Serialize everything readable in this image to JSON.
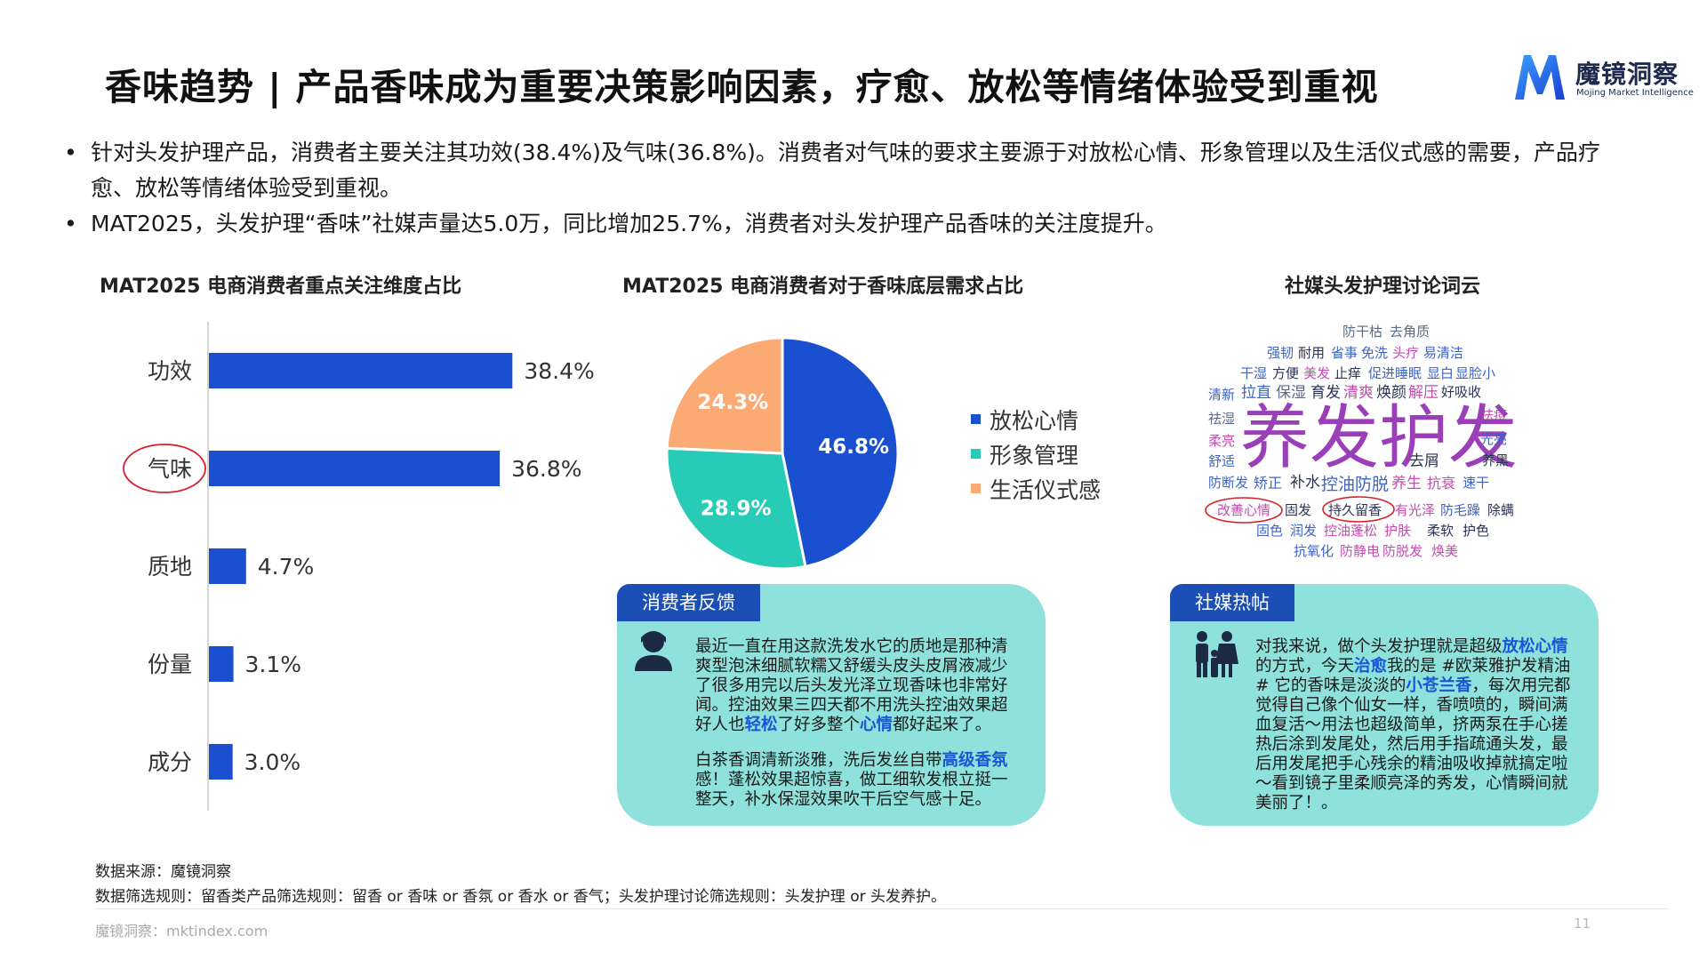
{
  "header": {
    "title": "香味趋势 | 产品香味成为重要决策影响因素，疗愈、放松等情绪体验受到重视",
    "logo_name": "魔镜洞察",
    "logo_sub": "Mojing Market Intelligence"
  },
  "bullets": [
    "针对头发护理产品，消费者主要关注其功效(38.4%)及气味(36.8%)。消费者对气味的要求主要源于对放松心情、形象管理以及生活仪式感的需要，产品疗愈、放松等情绪体验受到重视。",
    "MAT2025，头发护理“香味”社媒声量达5.0万，同比增加25.7%，消费者对头发护理产品香味的关注度提升。"
  ],
  "chart_data": [
    {
      "type": "bar",
      "orientation": "horizontal",
      "title": "MAT2025 电商消费者重点关注维度占比",
      "categories": [
        "功效",
        "气味",
        "质地",
        "份量",
        "成分"
      ],
      "values": [
        38.4,
        36.8,
        4.7,
        3.1,
        3.0
      ],
      "value_labels": [
        "38.4%",
        "36.8%",
        "4.7%",
        "3.1%",
        "3.0%"
      ],
      "highlighted_category": "气味",
      "color": "#1a50d0",
      "xlim": [
        0,
        45
      ],
      "grid": false
    },
    {
      "type": "pie",
      "title": "MAT2025 电商消费者对于香味底层需求占比",
      "categories": [
        "放松心情",
        "形象管理",
        "生活仪式感"
      ],
      "values": [
        46.8,
        28.9,
        24.3
      ],
      "value_labels": [
        "46.8%",
        "28.9%",
        "24.3%"
      ],
      "colors": [
        "#1a50d0",
        "#27cbb6",
        "#fbaa73"
      ],
      "legend_position": "right"
    }
  ],
  "wordcloud": {
    "title": "社媒头发护理讨论词云",
    "words": [
      "防干枯",
      "去角质",
      "强韧",
      "耐用",
      "省事",
      "免洗",
      "头疗",
      "易清洁",
      "干湿",
      "方便",
      "美发",
      "止痒",
      "促进睡眠",
      "显白",
      "显脸小",
      "清新",
      "拉直",
      "保湿",
      "育发",
      "清爽",
      "焕颜",
      "解压",
      "好吸收",
      "祛湿",
      "祛痘",
      "柔亮",
      "养发护发",
      "光亮",
      "舒适",
      "去屑",
      "养黑",
      "防断发",
      "矫正",
      "补水",
      "控油",
      "防脱",
      "养生",
      "抗衰",
      "速干",
      "改善心情",
      "固发",
      "持久留香",
      "有光泽",
      "防毛躁",
      "除螨",
      "固色",
      "润发",
      "控油蓬松",
      "护肤",
      "柔软",
      "护色",
      "抗氧化",
      "防静电",
      "防脱发",
      "焕美"
    ],
    "circled": [
      "改善心情",
      "持久留香"
    ]
  },
  "cards": [
    {
      "tag": "消费者反馈",
      "paragraphs": [
        [
          "最近一直在用这款洗发水它的质地是那种清爽型泡沫细腻软糯又舒缓头皮头皮屑液减少了很多用完以后头发光泽立现香味也非常好闻。控油效果三四天都不用洗头控油效果超好人也",
          "轻松",
          "了好多整个",
          "心情",
          "都好起来了。"
        ],
        [
          "白茶香调清新淡雅，洗后发丝自带",
          "高级香氛",
          "感！蓬松效果超惊喜，做工细软发根立挺一整天，补水保湿效果吹干后空气感十足。"
        ]
      ]
    },
    {
      "tag": "社媒热帖",
      "paragraphs": [
        [
          "对我来说，做个头发护理就是超级",
          "放松心情",
          "的方式，今天",
          "治愈",
          "我的是 #欧莱雅护发精油 # 它的香味是淡淡的",
          "小苍兰香",
          "，每次用完都觉得自己像个仙女一样，香喷喷的，瞬间满血复活～用法也超级简单，挤两泵在手心搓热后涂到发尾处，然后用手指疏通头发，最后用发尾把手心残余的精油吸收掉就搞定啦～看到镜子里柔顺亮泽的秀发，心情瞬间就美丽了！。"
        ]
      ]
    }
  ],
  "footnotes": {
    "source": "数据来源：魔镜洞察",
    "rule": "数据筛选规则：留香类产品筛选规则：留香 or 香味 or 香氛 or 香水 or 香气；头发护理讨论筛选规则：头发护理 or 头发养护。",
    "url": "魔镜洞察：mktindex.com",
    "page": "11"
  }
}
